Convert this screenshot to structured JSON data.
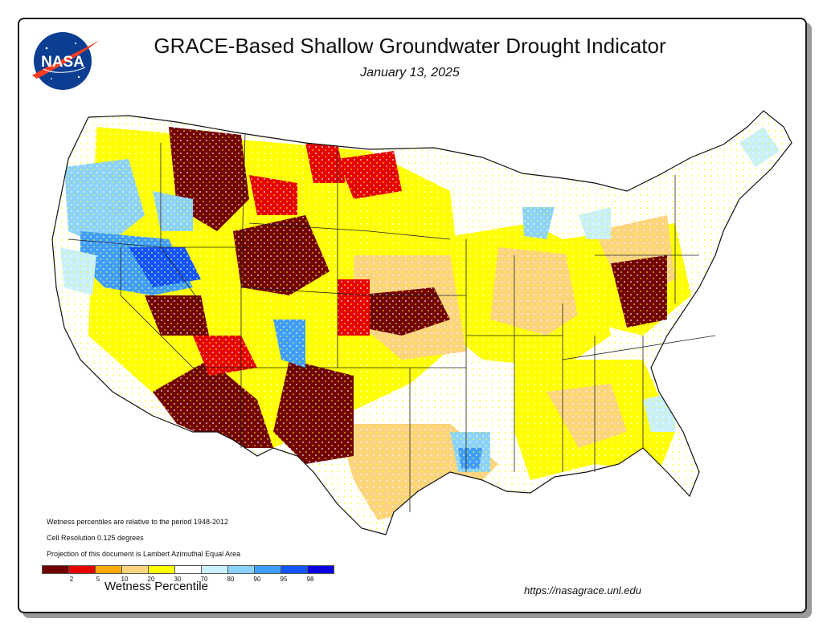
{
  "title": "GRACE-Based Shallow Groundwater Drought Indicator",
  "date": "January 13, 2025",
  "logo_text": "NASA",
  "notes": [
    "Wetness percentiles are relative to the period 1948-2012",
    "Cell Resolution 0.125 degrees",
    "Projection of this document is Lambert Azimuthal Equal Area"
  ],
  "legend": {
    "title": "Wetness Percentile",
    "colors": [
      "#730000",
      "#e60000",
      "#ffaa00",
      "#fcd37f",
      "#ffff00",
      "#ffffff",
      "#c8f0ff",
      "#8cd2ff",
      "#3f9eff",
      "#1455ff",
      "#0a00e0"
    ],
    "ticks": [
      "2",
      "5",
      "10",
      "20",
      "30",
      "70",
      "80",
      "90",
      "95",
      "98"
    ]
  },
  "url": "https://nasagrace.unl.edu",
  "colors": {
    "very_dry": "#730000",
    "dry": "#e60000",
    "moderate": "#ffaa00",
    "light": "#fcd37f",
    "abnormal": "#ffff00",
    "normal": "#ffffff",
    "wet1": "#c8f0ff",
    "wet2": "#8cd2ff",
    "wet3": "#3f9eff",
    "wet4": "#1455ff"
  }
}
